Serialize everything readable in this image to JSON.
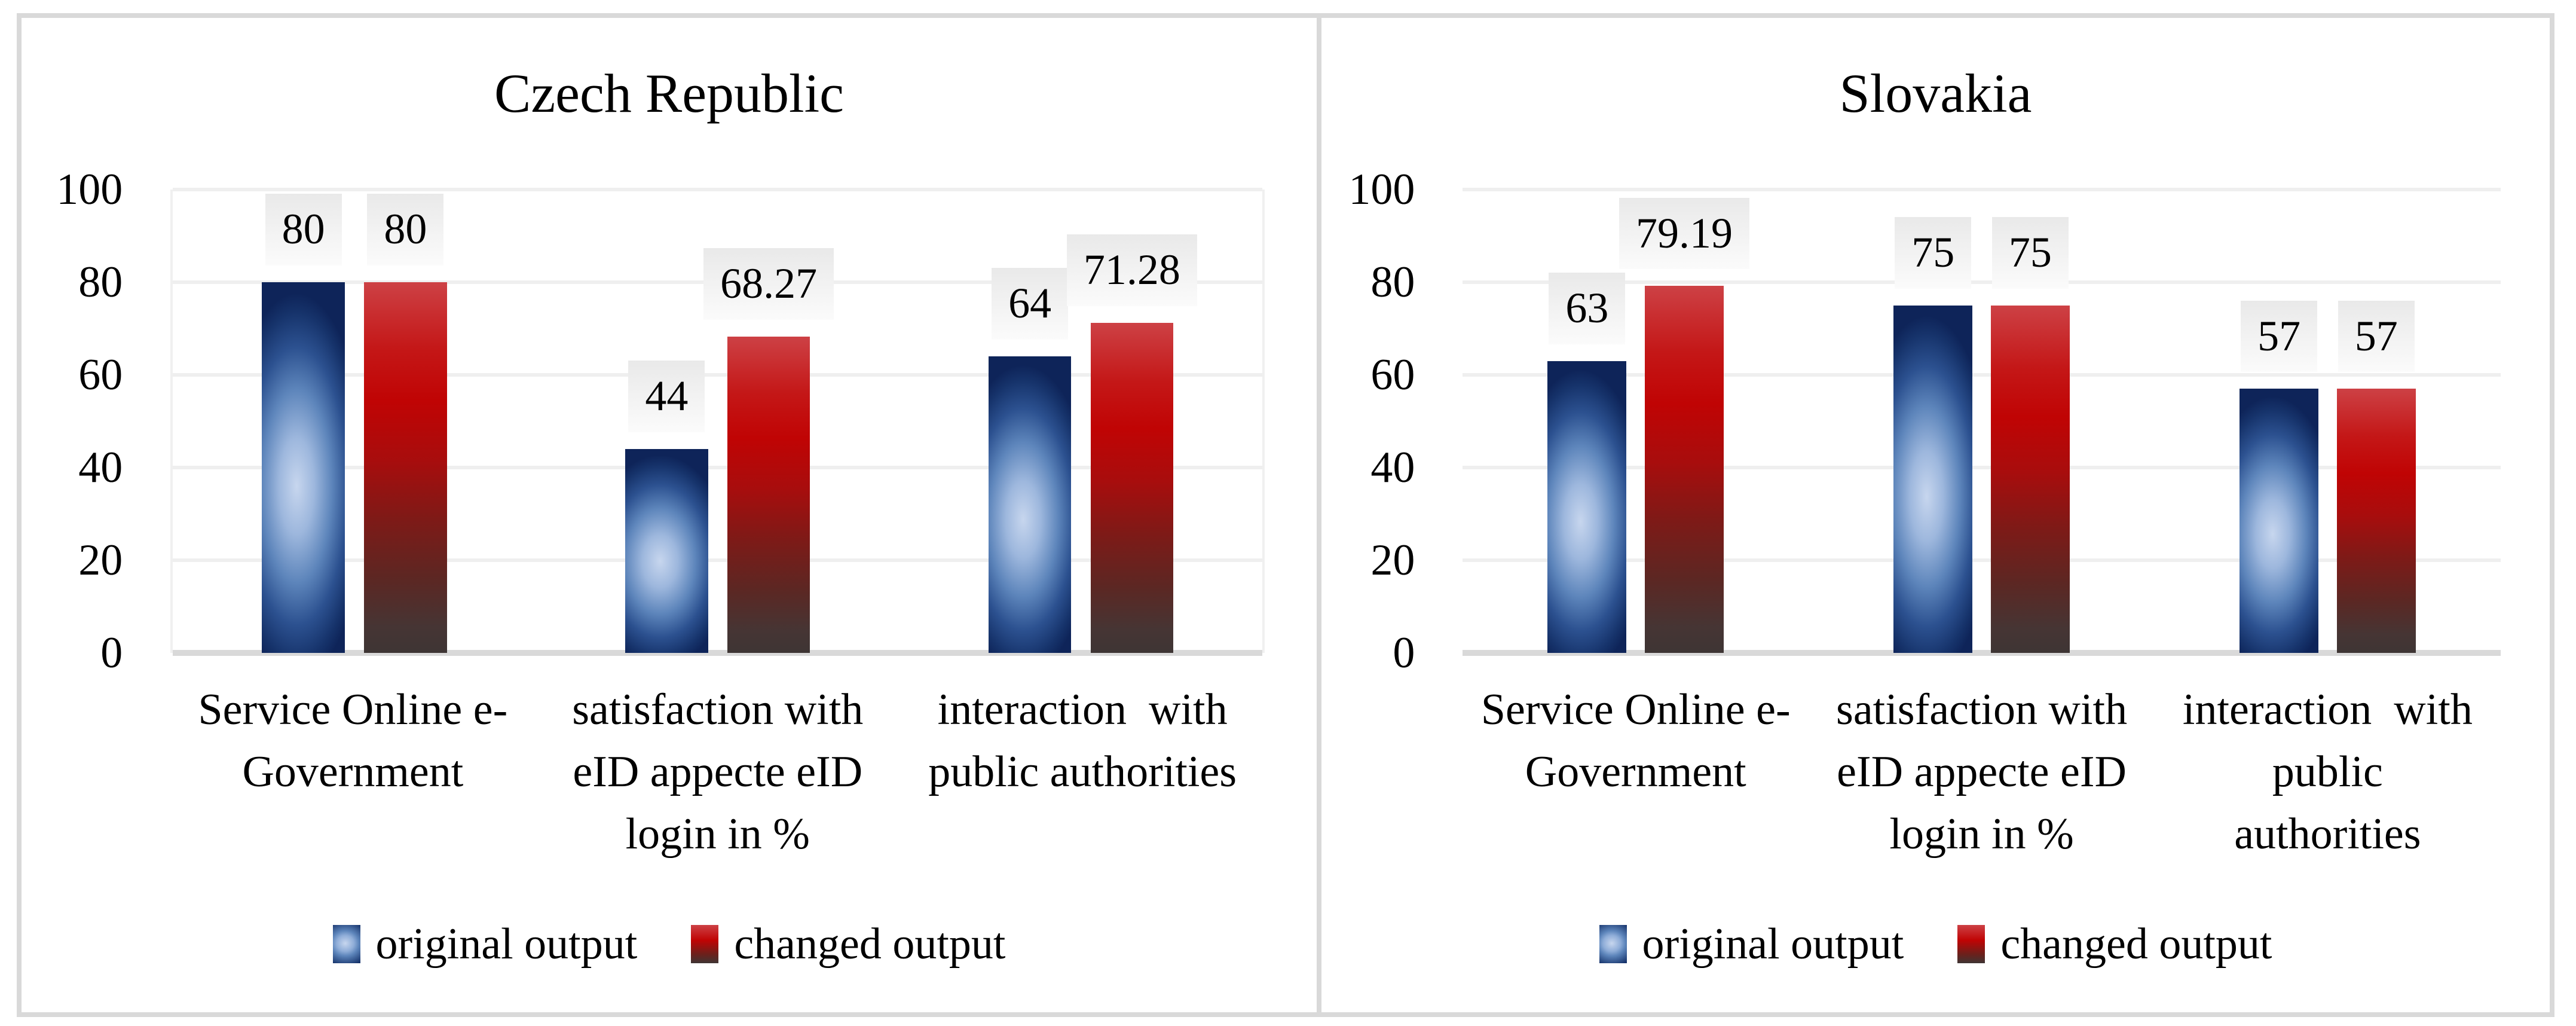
{
  "figure": {
    "y_axis_ticks": [
      "100",
      "80",
      "60",
      "40",
      "20",
      "0"
    ],
    "legend": {
      "items": [
        {
          "label": "original output",
          "swatch": "blue-gradient"
        },
        {
          "label": "changed output",
          "swatch": "red-gradient"
        }
      ]
    },
    "colors": {
      "original_series_dark_blue": "#0e2459",
      "original_series_glow_blue": "#c7d6ee",
      "changed_series_top_red": "#cd4145",
      "changed_series_bright_red": "#c00404",
      "changed_series_bottom_charcoal": "#3e3534",
      "gridline": "#efefef",
      "axis_line": "#d9d9d9",
      "frame_border": "#d9d9d9",
      "data_label_box_top": "#e9e9e9",
      "data_label_box_bottom": "#fbfbfb",
      "text": "#000000",
      "background": "#ffffff"
    }
  },
  "panels": [
    {
      "title": "Czech Republic",
      "categories": [
        "Service Online e-\nGovernment",
        "satisfaction with\neID appecte eID\nlogin in %",
        "interaction  with\npublic authorities"
      ],
      "groups": [
        {
          "bars": [
            {
              "series": "original output",
              "value": 80,
              "label": "80"
            },
            {
              "series": "changed output",
              "value": 80,
              "label": "80"
            }
          ]
        },
        {
          "bars": [
            {
              "series": "original output",
              "value": 44,
              "label": "44"
            },
            {
              "series": "changed output",
              "value": 68.27,
              "label": "68.27"
            }
          ]
        },
        {
          "bars": [
            {
              "series": "original output",
              "value": 64,
              "label": "64"
            },
            {
              "series": "changed output",
              "value": 71.28,
              "label": "71.28"
            }
          ]
        }
      ]
    },
    {
      "title": "Slovakia",
      "categories": [
        "Service Online e-\nGovernment",
        "satisfaction with\neID appecte eID\nlogin in %",
        "interaction  with\npublic\nauthorities"
      ],
      "groups": [
        {
          "bars": [
            {
              "series": "original output",
              "value": 63,
              "label": "63"
            },
            {
              "series": "changed output",
              "value": 79.19,
              "label": "79.19"
            }
          ]
        },
        {
          "bars": [
            {
              "series": "original output",
              "value": 75,
              "label": "75"
            },
            {
              "series": "changed output",
              "value": 75,
              "label": "75"
            }
          ]
        },
        {
          "bars": [
            {
              "series": "original output",
              "value": 57,
              "label": "57"
            },
            {
              "series": "changed output",
              "value": 57,
              "label": "57"
            }
          ]
        }
      ]
    }
  ],
  "chart_data": [
    {
      "type": "bar",
      "title": "Czech Republic",
      "categories": [
        "Service Online e-Government",
        "satisfaction with eID appecte eID login in %",
        "interaction  with public authorities"
      ],
      "series": [
        {
          "name": "original output",
          "values": [
            80,
            44,
            64
          ]
        },
        {
          "name": "changed output",
          "values": [
            80,
            68.27,
            71.28
          ]
        }
      ],
      "ylim": [
        0,
        100
      ],
      "yticks": [
        0,
        20,
        40,
        60,
        80,
        100
      ],
      "grid": true,
      "data_labels": true,
      "legend_position": "bottom"
    },
    {
      "type": "bar",
      "title": "Slovakia",
      "categories": [
        "Service Online e-Government",
        "satisfaction with eID appecte eID login in %",
        "interaction  with public authorities"
      ],
      "series": [
        {
          "name": "original output",
          "values": [
            63,
            75,
            57
          ]
        },
        {
          "name": "changed output",
          "values": [
            79.19,
            75,
            57
          ]
        }
      ],
      "ylim": [
        0,
        100
      ],
      "yticks": [
        0,
        20,
        40,
        60,
        80,
        100
      ],
      "grid": true,
      "data_labels": true,
      "legend_position": "bottom"
    }
  ]
}
